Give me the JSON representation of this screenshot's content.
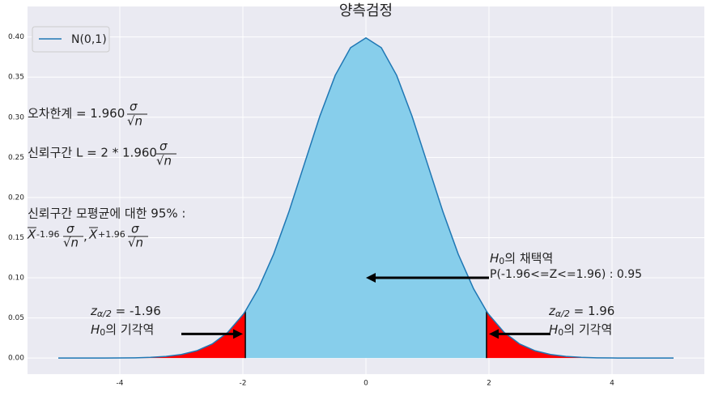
{
  "chart_data": {
    "type": "line",
    "title": "양측검정",
    "x": [
      -5,
      -4.75,
      -4.5,
      -4.25,
      -4,
      -3.75,
      -3.5,
      -3.25,
      -3,
      -2.75,
      -2.5,
      -2.25,
      -2,
      -1.96,
      -1.75,
      -1.5,
      -1.25,
      -1,
      -0.75,
      -0.5,
      -0.25,
      0,
      0.25,
      0.5,
      0.75,
      1,
      1.25,
      1.5,
      1.75,
      1.96,
      2,
      2.25,
      2.5,
      2.75,
      3,
      3.25,
      3.5,
      3.75,
      4,
      4.25,
      4.5,
      4.75,
      5
    ],
    "series": [
      {
        "name": "N(0,1)",
        "color": "#1f77b4",
        "values": [
          1.5e-06,
          5e-06,
          1.6e-05,
          4.7e-05,
          0.000134,
          0.000353,
          0.000873,
          0.002029,
          0.004432,
          0.009094,
          0.017528,
          0.03174,
          0.053991,
          0.058441,
          0.086277,
          0.129518,
          0.182649,
          0.241971,
          0.301137,
          0.352065,
          0.386668,
          0.398942,
          0.386668,
          0.352065,
          0.301137,
          0.241971,
          0.182649,
          0.129518,
          0.086277,
          0.058441,
          0.053991,
          0.03174,
          0.017528,
          0.009094,
          0.004432,
          0.002029,
          0.000873,
          0.000353,
          0.000134,
          4.7e-05,
          1.6e-05,
          5e-06,
          1.5e-06
        ]
      }
    ],
    "critical": [
      -1.96,
      1.96
    ],
    "accept_color": "#87ceeb",
    "reject_color": "#ff0000",
    "xlim": [
      -5.5,
      5.5
    ],
    "ylim": [
      -0.02,
      0.438
    ],
    "xticks": [
      -4,
      -2,
      0,
      2,
      4
    ],
    "yticks": [
      {
        "value": 0,
        "label": "0.00"
      },
      {
        "value": 0.05,
        "label": "0.05"
      },
      {
        "value": 0.1,
        "label": "0.10"
      },
      {
        "value": 0.15,
        "label": "0.15"
      },
      {
        "value": 0.2,
        "label": "0.20"
      },
      {
        "value": 0.25,
        "label": "0.25"
      },
      {
        "value": 0.3,
        "label": "0.30"
      },
      {
        "value": 0.35,
        "label": "0.35"
      },
      {
        "value": 0.4,
        "label": "0.40"
      }
    ],
    "grid": true,
    "legend": "upper left",
    "arrows": [
      {
        "x": [
          -3,
          -2
        ],
        "y": 0.03
      },
      {
        "x": [
          2,
          0
        ],
        "y": 0.1
      },
      {
        "x": [
          3,
          2
        ],
        "y": 0.03
      }
    ],
    "annotations": [
      {
        "parts": [
          "오차한계 = 1.960",
          "σ",
          "√n"
        ]
      },
      {
        "parts": [
          "신뢰구간 L = 2 * 1.960",
          "σ",
          "√n"
        ]
      },
      {
        "parts": [
          "신뢰구간 모평균에 대한 95% :"
        ]
      },
      {
        "parts": [
          "X",
          "-1.96",
          "σ",
          "√n",
          ",",
          "X",
          "+1.96",
          "σ",
          "√n"
        ]
      },
      {
        "parts": [
          "H",
          "0",
          "의 채택역"
        ]
      },
      {
        "parts": [
          "P(-1.96<=Z<=1.96) : 0.95"
        ]
      },
      {
        "parts": [
          "z",
          "α/2",
          " = -1.96"
        ]
      },
      {
        "parts": [
          "H",
          "0",
          "의 기각역"
        ]
      },
      {
        "parts": [
          "z",
          "α/2",
          " = 1.96"
        ]
      },
      {
        "parts": [
          "H",
          "0",
          "의 기각역"
        ]
      }
    ]
  }
}
